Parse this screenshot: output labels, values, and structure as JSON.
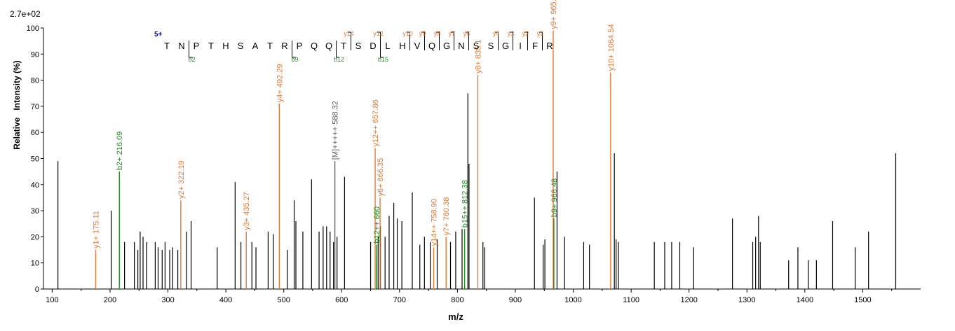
{
  "chart_data": {
    "type": "bar",
    "scale_label": "2.7e+02",
    "xlabel": "m/z",
    "ylabel": "Relative   Intensity (%)",
    "xlim": [
      85,
      1600
    ],
    "ylim": [
      0,
      100
    ],
    "xticks": [
      100,
      200,
      300,
      400,
      500,
      600,
      700,
      800,
      900,
      1000,
      1100,
      1200,
      1300,
      1400,
      1500
    ],
    "yticks": [
      0,
      10,
      20,
      30,
      40,
      50,
      60,
      70,
      80,
      90,
      100
    ],
    "colors": {
      "b_ion": "#228B22",
      "y_ion": "#E07B39",
      "precursor": "#606060",
      "peak": "#000000",
      "charge": "#00008B"
    },
    "peptide": {
      "charge": "5+",
      "sequence": [
        "T",
        "N",
        "P",
        "T",
        "H",
        "S",
        "A",
        "T",
        "R",
        "P",
        "Q",
        "Q",
        "T",
        "S",
        "D",
        "L",
        "H",
        "V",
        "Q",
        "G",
        "N",
        "S",
        "S",
        "G",
        "I",
        "F",
        "R"
      ],
      "y_marks": [
        {
          "after": 12,
          "label": "y14"
        },
        {
          "after": 14,
          "label": "y12"
        },
        {
          "after": 16,
          "label": "y10"
        },
        {
          "after": 17,
          "label": "y9"
        },
        {
          "after": 18,
          "label": "y8"
        },
        {
          "after": 19,
          "label": "y7"
        },
        {
          "after": 20,
          "label": "y6"
        },
        {
          "after": 22,
          "label": "y4"
        },
        {
          "after": 23,
          "label": "y3"
        },
        {
          "after": 24,
          "label": "y2"
        },
        {
          "after": 25,
          "label": "y1"
        }
      ],
      "b_marks": [
        {
          "after": 1,
          "label": "b2"
        },
        {
          "after": 8,
          "label": "b9"
        },
        {
          "after": 11,
          "label": "b12"
        },
        {
          "after": 14,
          "label": "b15"
        }
      ]
    },
    "peaks": [
      [
        110,
        49
      ],
      [
        202,
        30
      ],
      [
        225,
        18
      ],
      [
        242,
        18
      ],
      [
        248,
        15
      ],
      [
        252,
        22
      ],
      [
        257,
        20
      ],
      [
        263,
        18
      ],
      [
        278,
        18
      ],
      [
        283,
        16
      ],
      [
        290,
        15
      ],
      [
        295,
        18
      ],
      [
        303,
        15
      ],
      [
        308,
        16
      ],
      [
        317,
        15
      ],
      [
        332,
        22
      ],
      [
        340,
        26
      ],
      [
        385,
        16
      ],
      [
        416,
        41
      ],
      [
        426,
        18
      ],
      [
        445,
        18
      ],
      [
        452,
        16
      ],
      [
        473,
        22
      ],
      [
        482,
        21
      ],
      [
        506,
        15
      ],
      [
        518,
        34
      ],
      [
        521,
        26
      ],
      [
        533,
        22
      ],
      [
        548,
        42
      ],
      [
        561,
        22
      ],
      [
        568,
        24
      ],
      [
        574,
        24
      ],
      [
        580,
        22
      ],
      [
        586,
        18
      ],
      [
        592,
        20
      ],
      [
        605,
        43
      ],
      [
        650,
        18
      ],
      [
        660,
        12
      ],
      [
        663,
        20
      ],
      [
        667,
        24
      ],
      [
        675,
        20
      ],
      [
        682,
        28
      ],
      [
        690,
        33
      ],
      [
        696,
        27
      ],
      [
        704,
        26
      ],
      [
        722,
        37
      ],
      [
        735,
        17
      ],
      [
        743,
        20
      ],
      [
        753,
        18
      ],
      [
        765,
        19
      ],
      [
        788,
        18
      ],
      [
        797,
        22
      ],
      [
        808,
        23
      ],
      [
        818,
        75
      ],
      [
        820,
        48
      ],
      [
        844,
        18
      ],
      [
        847,
        16
      ],
      [
        933,
        35
      ],
      [
        948,
        17
      ],
      [
        951,
        19
      ],
      [
        972,
        45
      ],
      [
        985,
        20
      ],
      [
        1018,
        18
      ],
      [
        1028,
        17
      ],
      [
        1071,
        52
      ],
      [
        1074,
        19
      ],
      [
        1078,
        18
      ],
      [
        1140,
        18
      ],
      [
        1158,
        18
      ],
      [
        1170,
        18
      ],
      [
        1184,
        18
      ],
      [
        1208,
        16
      ],
      [
        1275,
        27
      ],
      [
        1310,
        18
      ],
      [
        1315,
        20
      ],
      [
        1320,
        28
      ],
      [
        1323,
        18
      ],
      [
        1372,
        11
      ],
      [
        1388,
        16
      ],
      [
        1406,
        11
      ],
      [
        1420,
        11
      ],
      [
        1448,
        26
      ],
      [
        1487,
        16
      ],
      [
        1510,
        22
      ],
      [
        1557,
        52
      ]
    ],
    "annotated_peaks": [
      {
        "mz": 175.11,
        "y": 15,
        "label": "y1+ 175.11",
        "ion": "y"
      },
      {
        "mz": 216.09,
        "y": 45,
        "label": "b2+ 216.09",
        "ion": "b"
      },
      {
        "mz": 322.19,
        "y": 34,
        "label": "y2+ 322.19",
        "ion": "y"
      },
      {
        "mz": 435.27,
        "y": 22,
        "label": "y3+ 435.27",
        "ion": "y"
      },
      {
        "mz": 492.29,
        "y": 71,
        "label": "y4+ 492.29",
        "ion": "y"
      },
      {
        "mz": 588.32,
        "y": 49,
        "label": "[M]+++++ 588.32",
        "ion": "precursor"
      },
      {
        "mz": 657.86,
        "y": 54,
        "label": "y12++ 657.86",
        "ion": "y"
      },
      {
        "mz": 660,
        "y": 17,
        "label": "b12++ 660",
        "ion": "b"
      },
      {
        "mz": 666.35,
        "y": 35,
        "label": "y6+ 666.35",
        "ion": "y"
      },
      {
        "mz": 758.9,
        "y": 16,
        "label": "y14++ 758.90",
        "ion": "y"
      },
      {
        "mz": 780.38,
        "y": 20,
        "label": "y7+ 780.38",
        "ion": "y"
      },
      {
        "mz": 812.38,
        "y": 23,
        "label": "b15++ 812.38",
        "ion": "b"
      },
      {
        "mz": 835.1,
        "y": 82,
        "label": "y8+ 835.1",
        "ion": "y"
      },
      {
        "mz": 965.4,
        "y": 99,
        "label": "y9+ 965.4",
        "ion": "y"
      },
      {
        "mz": 966.48,
        "y": 27,
        "label": "b9+ 966.48",
        "ion": "b"
      },
      {
        "mz": 1064.54,
        "y": 83,
        "label": "y10+ 1064.54",
        "ion": "y"
      }
    ]
  }
}
